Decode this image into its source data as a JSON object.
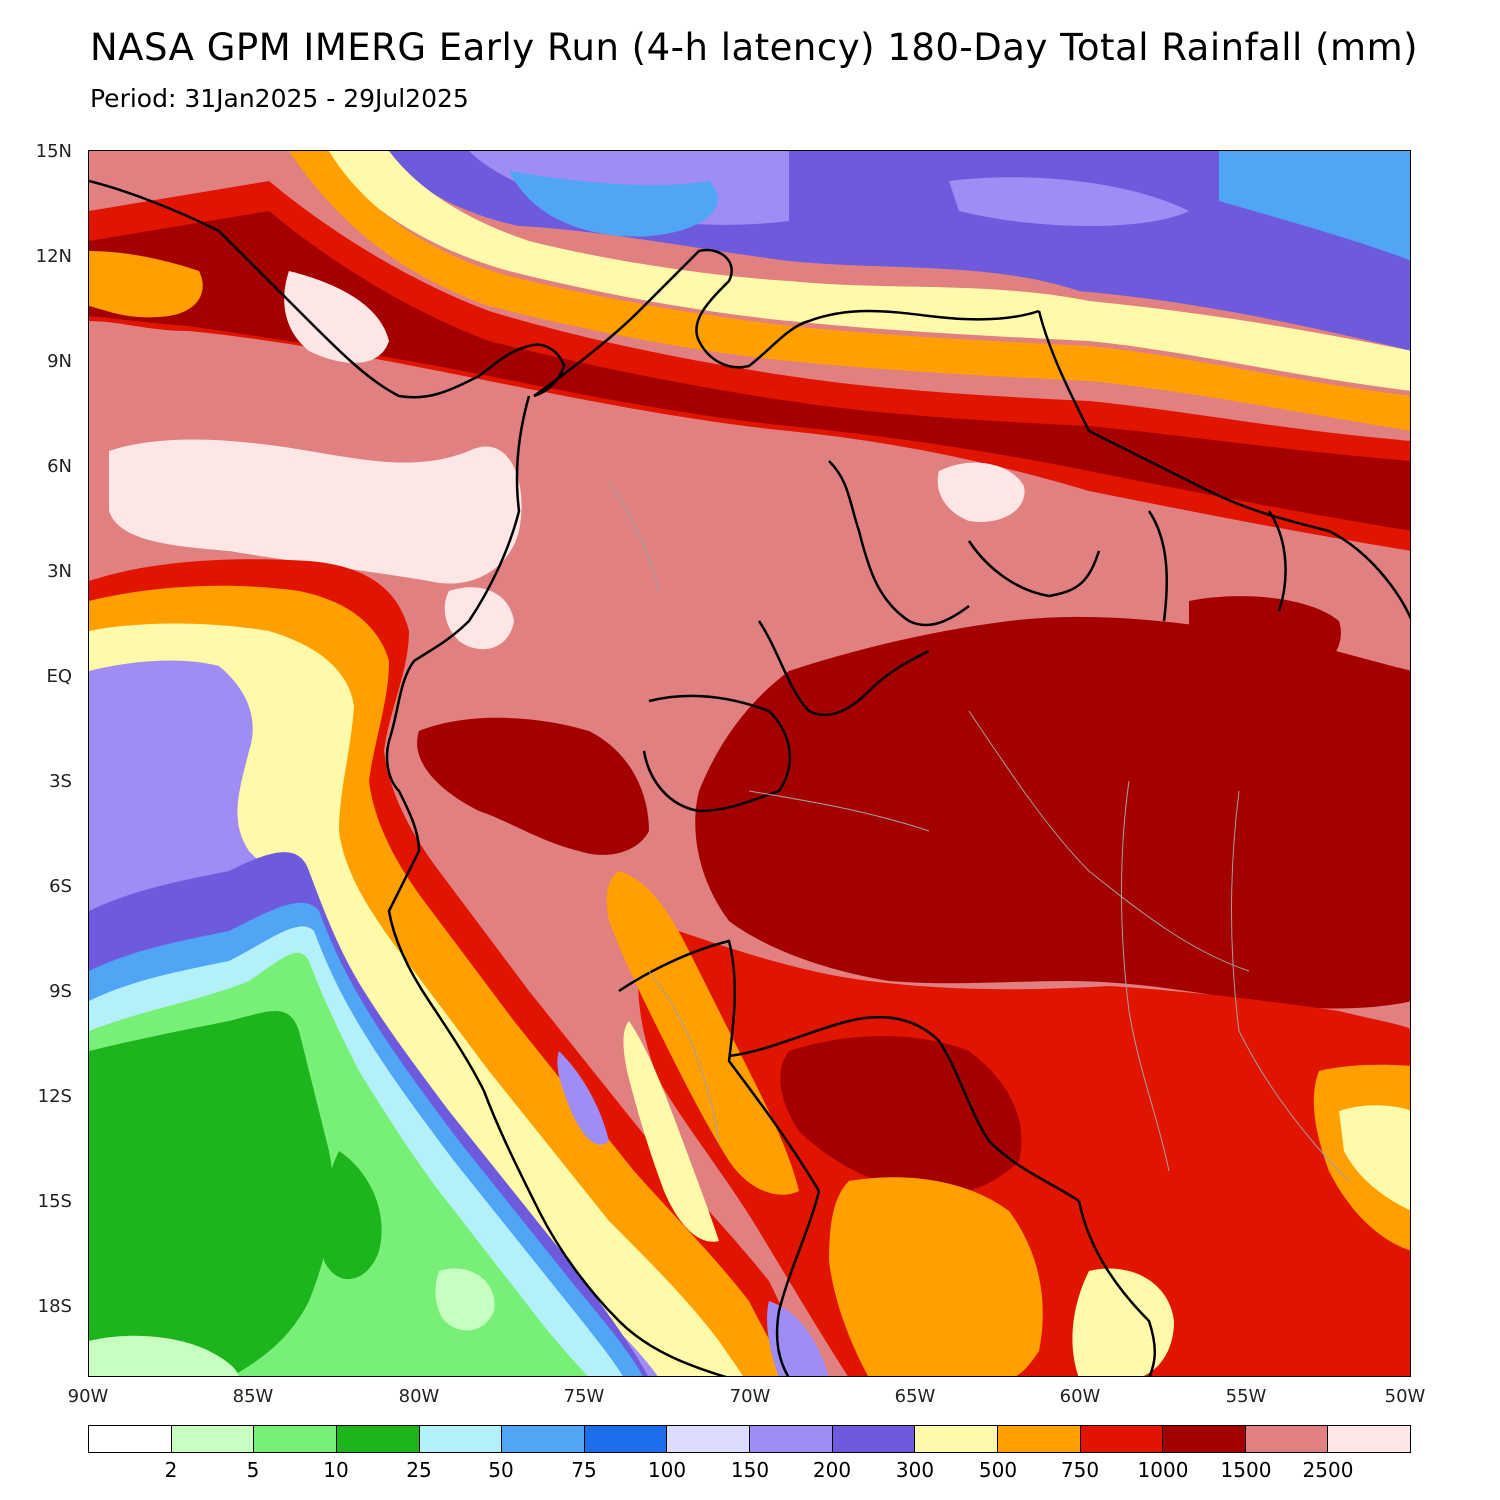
{
  "title": "NASA GPM IMERG Early Run (4-h latency) 180-Day Total Rainfall (mm)",
  "subtitle": "Period: 31Jan2025 - 29Jul2025",
  "map": {
    "lat_labels": [
      "15N",
      "12N",
      "9N",
      "6N",
      "3N",
      "EQ",
      "3S",
      "6S",
      "9S",
      "12S",
      "15S",
      "18S"
    ],
    "lon_labels": [
      "90W",
      "85W",
      "80W",
      "75W",
      "70W",
      "65W",
      "60W",
      "55W",
      "50W"
    ],
    "lat_range": [
      -20,
      15
    ],
    "lon_range": [
      -90,
      -50
    ]
  },
  "legend": {
    "colors": [
      "#ffffff",
      "#c6ffc0",
      "#78f078",
      "#1eb41e",
      "#b4f0fa",
      "#50a5f5",
      "#1e6eeb",
      "#dcdcff",
      "#a08cf5",
      "#6e5adc",
      "#fffaaa",
      "#ffa000",
      "#e11400",
      "#a50000",
      "#e08080",
      "#fce6e6"
    ],
    "thresholds": [
      "2",
      "5",
      "10",
      "25",
      "50",
      "75",
      "100",
      "150",
      "200",
      "300",
      "500",
      "750",
      "1000",
      "1500",
      "2500"
    ]
  }
}
